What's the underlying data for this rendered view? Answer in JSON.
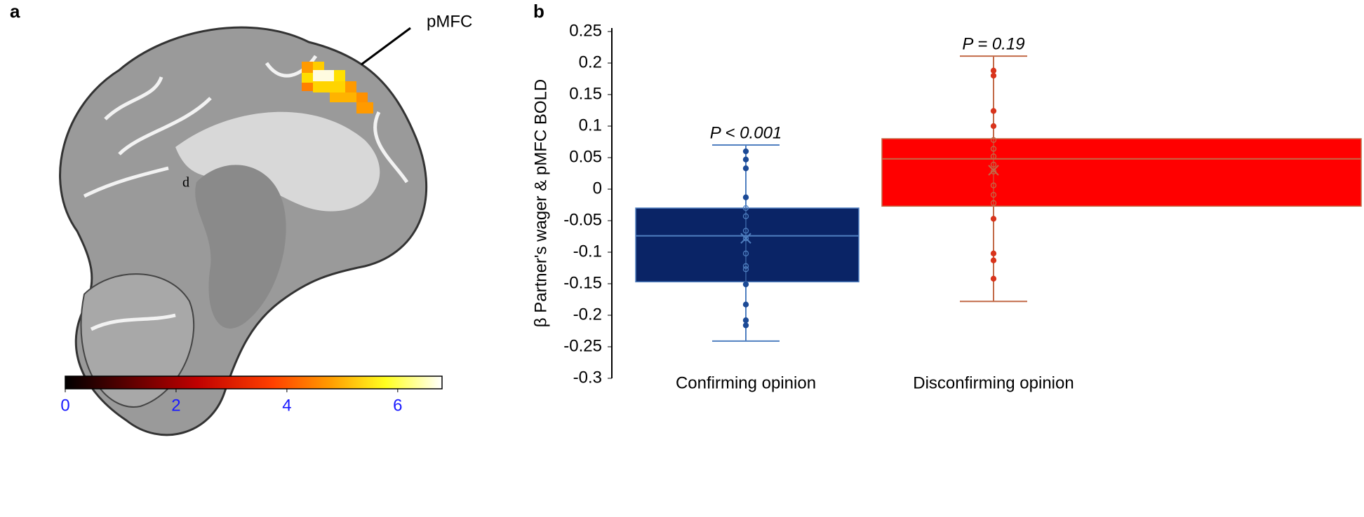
{
  "panel_a": {
    "label": "a",
    "region_label": "pMFC",
    "marker_label": "d",
    "colorbar": {
      "lim": [
        0,
        6.8
      ],
      "ticks": [
        0,
        2,
        4,
        6
      ]
    }
  },
  "chart_data": {
    "type": "box",
    "panel_label": "b",
    "ylabel": "β Partner's wager & pMFC BOLD",
    "ylim": [
      -0.3,
      0.25
    ],
    "yticks": [
      -0.3,
      -0.25,
      -0.2,
      -0.15,
      -0.1,
      -0.05,
      0,
      0.05,
      0.1,
      0.15,
      0.2,
      0.25
    ],
    "categories": [
      "Confirming opinion",
      "Disconfirming opinion"
    ],
    "boxes": [
      {
        "color": "#0a2466",
        "point_color": "#1c4a96",
        "whisker_color": "#4f7fc0",
        "q1": -0.147,
        "median": -0.074,
        "q3": -0.03,
        "whisker_low": -0.241,
        "whisker_high": 0.07,
        "mean": -0.078,
        "points": [
          0.06,
          0.047,
          0.033,
          -0.013,
          -0.03,
          -0.043,
          -0.066,
          -0.078,
          -0.102,
          -0.122,
          -0.127,
          -0.151,
          -0.183,
          -0.208,
          -0.216
        ],
        "annotation": "P < 0.001"
      },
      {
        "color": "#ff0000",
        "point_color": "#d9341c",
        "whisker_color": "#c26a48",
        "q1": -0.027,
        "median": 0.048,
        "q3": 0.08,
        "whisker_low": -0.178,
        "whisker_high": 0.211,
        "mean": 0.03,
        "points": [
          0.188,
          0.18,
          0.124,
          0.1,
          0.078,
          0.064,
          0.052,
          0.039,
          0.028,
          0.006,
          -0.009,
          -0.022,
          -0.047,
          -0.102,
          -0.113,
          -0.142
        ],
        "annotation": "P = 0.19"
      }
    ]
  }
}
